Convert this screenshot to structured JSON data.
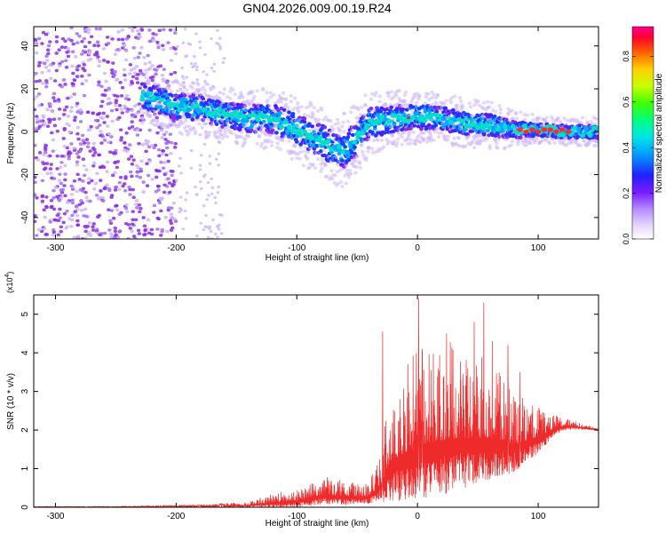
{
  "figure": {
    "title": "GN04.2026.009.00.19.R24"
  },
  "colors": {
    "background": "#ffffff",
    "axis": "#000000",
    "snr_line": "#ee2a2a",
    "cloud": "#8a2be2",
    "cloud_light": "#cdb6f5",
    "band_core": "#00e0c8",
    "band_hot": "#ff2a2a"
  },
  "chart_data": [
    {
      "type": "heatmap",
      "title": "",
      "xlabel": "Height of straight line (km)",
      "ylabel": "Frequency (Hz)",
      "xlim": [
        -318,
        150
      ],
      "ylim": [
        -50,
        49
      ],
      "xticks": [
        -300,
        -200,
        -100,
        0,
        100
      ],
      "yticks": [
        -40,
        -20,
        0,
        20,
        40
      ],
      "colorbar": {
        "label": "Normalized spectral amplitude",
        "range": [
          0,
          0.93
        ],
        "ticks": [
          "0.0",
          "0.2",
          "0.4",
          "0.6",
          "0.8"
        ],
        "tick_values": [
          0.0,
          0.2,
          0.4,
          0.6,
          0.8
        ]
      },
      "noise_region": {
        "x_range": [
          -318,
          -200
        ],
        "freq_range": [
          -50,
          49
        ]
      },
      "band_center": {
        "x": [
          -228,
          -200,
          -180,
          -160,
          -140,
          -120,
          -100,
          -90,
          -80,
          -70,
          -60,
          -50,
          -40,
          -20,
          0,
          20,
          40,
          60,
          80,
          100,
          120,
          150
        ],
        "freq": [
          17,
          12,
          11,
          8,
          6,
          6,
          1,
          -2,
          -4,
          -8,
          -9,
          -3,
          4,
          6,
          7,
          6,
          4,
          3,
          1,
          1,
          0,
          0
        ]
      },
      "band_halfwidth": {
        "x": [
          -228,
          -150,
          -100,
          -60,
          -20,
          60,
          100,
          150
        ],
        "halfwidth": [
          6,
          6,
          7,
          8,
          6,
          5,
          3,
          3
        ]
      },
      "hot_spots": {
        "x": [
          85,
          90,
          95,
          100,
          105,
          110,
          115,
          120,
          125
        ],
        "freq": [
          1,
          0,
          1,
          0,
          1,
          1,
          0,
          1,
          0
        ],
        "amplitude": [
          0.9,
          0.92,
          0.9,
          0.91,
          0.88,
          0.9,
          0.87,
          0.9,
          0.85
        ]
      }
    },
    {
      "type": "line",
      "title": "",
      "xlabel": "Height of straight line (km)",
      "ylabel": "SNR (10 * v/v)",
      "y_multiplier": "(x10",
      "y_multiplier_exp": "4",
      "xlim": [
        -318,
        150
      ],
      "ylim": [
        0,
        5.5
      ],
      "xticks": [
        -300,
        -200,
        -100,
        0,
        100
      ],
      "yticks": [
        0,
        1,
        2,
        3,
        4,
        5
      ],
      "envelope": {
        "x": [
          -318,
          -250,
          -200,
          -170,
          -140,
          -120,
          -100,
          -80,
          -60,
          -40,
          -30,
          -20,
          0,
          20,
          40,
          60,
          80,
          100,
          115,
          125,
          135,
          150
        ],
        "lower": [
          0.0,
          0.0,
          0.0,
          0.0,
          0.0,
          0.0,
          0.0,
          0.05,
          0.05,
          0.1,
          0.1,
          0.15,
          0.2,
          0.3,
          0.5,
          0.7,
          0.9,
          1.4,
          1.9,
          2.0,
          2.0,
          2.0
        ],
        "upper": [
          0.02,
          0.02,
          0.05,
          0.08,
          0.15,
          0.35,
          0.5,
          0.8,
          0.75,
          0.6,
          1.6,
          3.3,
          4.2,
          4.4,
          4.2,
          3.8,
          3.0,
          2.6,
          2.4,
          2.3,
          2.2,
          2.05
        ]
      },
      "peaks": [
        {
          "x": -29,
          "y": 4.55
        },
        {
          "x": -8,
          "y": 3.7
        },
        {
          "x": 1,
          "y": 5.4
        },
        {
          "x": 4,
          "y": 4.1
        },
        {
          "x": 24,
          "y": 4.5
        },
        {
          "x": 36,
          "y": 3.3
        },
        {
          "x": 47,
          "y": 4.8
        },
        {
          "x": 55,
          "y": 5.3
        },
        {
          "x": 62,
          "y": 4.3
        },
        {
          "x": 75,
          "y": 4.2
        },
        {
          "x": 85,
          "y": 3.5
        }
      ]
    }
  ]
}
